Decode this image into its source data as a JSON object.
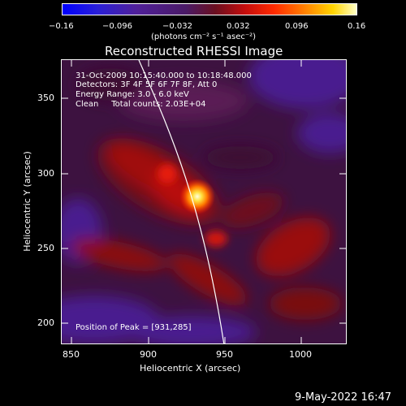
{
  "colorbar": {
    "tick_labels": [
      "−0.16",
      "−0.096",
      "−0.032",
      "0.032",
      "0.096",
      "0.16"
    ],
    "units": "(photons cm⁻² s⁻¹ asec⁻²)"
  },
  "title": "Reconstructed RHESSI Image",
  "overlay": {
    "time_range": "31-Oct-2009 10:15:40.000 to 10:18:48.000",
    "detectors": "Detectors: 3F 4F 5F 6F 7F 8F, Att 0",
    "energy": "Energy Range: 3.0 - 6.0 keV",
    "clean": "Clean     Total counts: 2.03E+04",
    "peak": "Position of Peak = [931,285]"
  },
  "x_axis": {
    "label": "Heliocentric X (arcsec)",
    "ticks": [
      "850",
      "900",
      "950",
      "1000"
    ]
  },
  "y_axis": {
    "label": "Heliocentric Y (arcsec)",
    "ticks": [
      "350",
      "300",
      "250",
      "200"
    ]
  },
  "footer": "9-May-2022 16:47",
  "colors": {
    "background": "#000000",
    "limb_line": "#ffffff"
  }
}
